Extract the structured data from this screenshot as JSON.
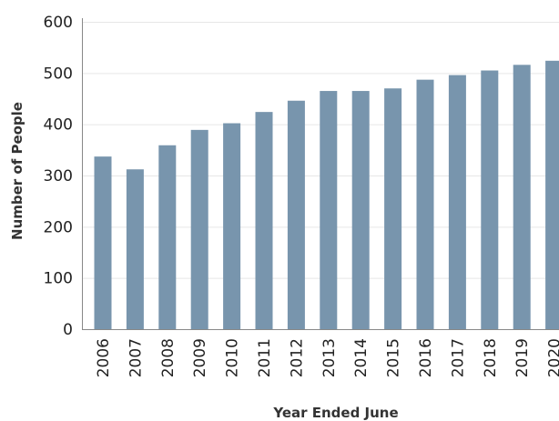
{
  "chart_data": {
    "type": "bar",
    "title": "",
    "xlabel": "Year Ended June",
    "ylabel": "Number of People",
    "ylim": [
      0,
      600
    ],
    "yticks": [
      0,
      100,
      200,
      300,
      400,
      500,
      600
    ],
    "grid": true,
    "categories": [
      "2006",
      "2007",
      "2008",
      "2009",
      "2010",
      "2011",
      "2012",
      "2013",
      "2014",
      "2015",
      "2016",
      "2017",
      "2018",
      "2019",
      "2020"
    ],
    "series": [
      {
        "values": [
          337,
          312,
          359,
          389,
          402,
          424,
          446,
          465,
          465,
          470,
          487,
          496,
          505,
          516,
          524
        ],
        "color": "#7895ad"
      }
    ]
  }
}
